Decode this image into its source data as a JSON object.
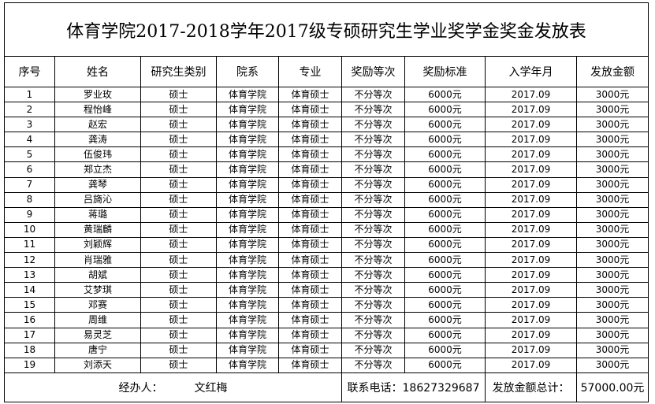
{
  "title": "体育学院2017-2018学年2017级专硕研究生学业奖学金奖金发放表",
  "headers": [
    "序号",
    "姓名",
    "研究生类别",
    "院系",
    "专业",
    "奖励等次",
    "奖励标准",
    "入学年月",
    "发放金额"
  ],
  "rows": [
    [
      "1",
      "罗业玫",
      "硕士",
      "体育学院",
      "体育硕士",
      "不分等次",
      "6000元",
      "2017.09",
      "3000元"
    ],
    [
      "2",
      "程怡峰",
      "硕士",
      "体育学院",
      "体育硕士",
      "不分等次",
      "6000元",
      "2017.09",
      "3000元"
    ],
    [
      "3",
      "赵宏",
      "硕士",
      "体育学院",
      "体育硕士",
      "不分等次",
      "6000元",
      "2017.09",
      "3000元"
    ],
    [
      "4",
      "龚涛",
      "硕士",
      "体育学院",
      "体育硕士",
      "不分等次",
      "6000元",
      "2017.09",
      "3000元"
    ],
    [
      "5",
      "伍俊玮",
      "硕士",
      "体育学院",
      "体育硕士",
      "不分等次",
      "6000元",
      "2017.09",
      "3000元"
    ],
    [
      "6",
      "郑立杰",
      "硕士",
      "体育学院",
      "体育硕士",
      "不分等次",
      "6000元",
      "2017.09",
      "3000元"
    ],
    [
      "7",
      "龚琴",
      "硕士",
      "体育学院",
      "体育硕士",
      "不分等次",
      "6000元",
      "2017.09",
      "3000元"
    ],
    [
      "8",
      "吕旖沁",
      "硕士",
      "体育学院",
      "体育硕士",
      "不分等次",
      "6000元",
      "2017.09",
      "3000元"
    ],
    [
      "9",
      "蒋璐",
      "硕士",
      "体育学院",
      "体育硕士",
      "不分等次",
      "6000元",
      "2017.09",
      "3000元"
    ],
    [
      "10",
      "黄瑞麟",
      "硕士",
      "体育学院",
      "体育硕士",
      "不分等次",
      "6000元",
      "2017.09",
      "3000元"
    ],
    [
      "11",
      "刘颖辉",
      "硕士",
      "体育学院",
      "体育硕士",
      "不分等次",
      "6000元",
      "2017.09",
      "3000元"
    ],
    [
      "12",
      "肖瑞雅",
      "硕士",
      "体育学院",
      "体育硕士",
      "不分等次",
      "6000元",
      "2017.09",
      "3000元"
    ],
    [
      "13",
      "胡斌",
      "硕士",
      "体育学院",
      "体育硕士",
      "不分等次",
      "6000元",
      "2017.09",
      "3000元"
    ],
    [
      "14",
      "艾梦琪",
      "硕士",
      "体育学院",
      "体育硕士",
      "不分等次",
      "6000元",
      "2017.09",
      "3000元"
    ],
    [
      "15",
      "邓赛",
      "硕士",
      "体育学院",
      "体育硕士",
      "不分等次",
      "6000元",
      "2017.09",
      "3000元"
    ],
    [
      "16",
      "周维",
      "硕士",
      "体育学院",
      "体育硕士",
      "不分等次",
      "6000元",
      "2017.09",
      "3000元"
    ],
    [
      "17",
      "易灵芝",
      "硕士",
      "体育学院",
      "体育硕士",
      "不分等次",
      "6000元",
      "2017.09",
      "3000元"
    ],
    [
      "18",
      "唐宁",
      "硕士",
      "体育学院",
      "体育硕士",
      "不分等次",
      "6000元",
      "2017.09",
      "3000元"
    ],
    [
      "19",
      "刘添天",
      "硕士",
      "体育学院",
      "体育硕士",
      "不分等次",
      "6000元",
      "2017.09",
      "3000元"
    ]
  ],
  "footer": {
    "handler_label": "经办人：",
    "handler_name": "文红梅",
    "phone": "联系电话：18627329687",
    "total_label": "发放金额总计：",
    "total_value": "57000.00元"
  }
}
